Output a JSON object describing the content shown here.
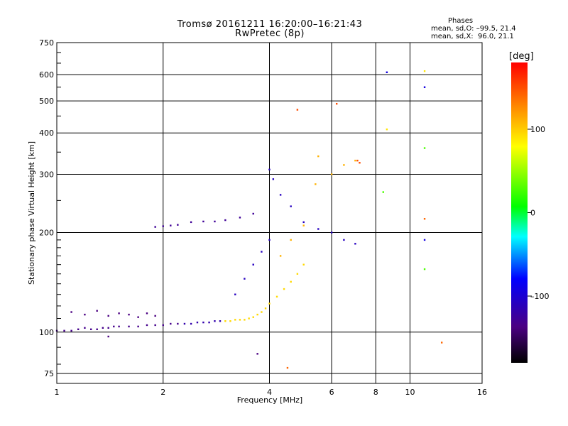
{
  "header": {
    "title": "Tromsø 20161211 16:20:00–16:21:43",
    "subtitle": "RwPretec (8p)",
    "stats_title": "Phases",
    "stats_o": "mean, sd,O: –99.5, 21.4",
    "stats_x": "mean, sd,X:  96.0, 21.1"
  },
  "colorbar": {
    "title": "[deg]",
    "min": -180,
    "max": 180,
    "ticks": [
      100,
      0,
      -100
    ],
    "tick_labels": [
      "100",
      "0",
      "–100"
    ]
  },
  "chart_data": {
    "type": "scatter",
    "xlabel": "Frequency [MHz]",
    "ylabel": "Stationary phase Virtual Height [km]",
    "xscale": "log",
    "yscale": "log",
    "xlim": [
      1,
      16
    ],
    "ylim": [
      70,
      750
    ],
    "xticks": [
      1,
      2,
      4,
      6,
      8,
      10,
      16
    ],
    "xtick_labels": [
      "1",
      "2",
      "4",
      "6",
      "8",
      "10",
      "16"
    ],
    "yticks": [
      75,
      100,
      200,
      300,
      400,
      500,
      600,
      750
    ],
    "ytick_labels": [
      "75",
      "100",
      "200",
      "300",
      "400",
      "500",
      "600",
      "750"
    ],
    "grid": true,
    "color_by": "phase [deg]",
    "traces": [
      {
        "phase": -135,
        "points": [
          [
            1.0,
            101
          ],
          [
            1.05,
            101
          ],
          [
            1.1,
            101
          ],
          [
            1.15,
            102
          ],
          [
            1.2,
            103
          ],
          [
            1.25,
            102
          ],
          [
            1.3,
            102
          ],
          [
            1.35,
            103
          ],
          [
            1.4,
            103
          ],
          [
            1.45,
            104
          ],
          [
            1.5,
            104
          ],
          [
            1.6,
            104
          ],
          [
            1.7,
            104
          ],
          [
            1.8,
            105
          ],
          [
            1.9,
            105
          ],
          [
            2.0,
            105
          ],
          [
            2.1,
            106
          ],
          [
            2.2,
            106
          ]
        ]
      },
      {
        "phase": -120,
        "points": [
          [
            2.3,
            106
          ],
          [
            2.4,
            106
          ],
          [
            2.5,
            107
          ],
          [
            2.6,
            107
          ],
          [
            2.7,
            107
          ],
          [
            2.8,
            108
          ],
          [
            2.9,
            108
          ]
        ]
      },
      {
        "phase": 95,
        "points": [
          [
            3.0,
            108
          ],
          [
            3.1,
            108
          ],
          [
            3.2,
            109
          ],
          [
            3.3,
            109
          ],
          [
            3.4,
            109
          ],
          [
            3.5,
            110
          ],
          [
            3.6,
            111
          ],
          [
            3.7,
            113
          ],
          [
            3.8,
            115
          ],
          [
            3.9,
            118
          ],
          [
            4.0,
            122
          ],
          [
            4.2,
            128
          ],
          [
            4.4,
            135
          ],
          [
            4.6,
            142
          ],
          [
            4.8,
            150
          ],
          [
            5.0,
            160
          ]
        ]
      },
      {
        "phase": -140,
        "points": [
          [
            1.1,
            115
          ],
          [
            1.2,
            113
          ],
          [
            1.3,
            116
          ],
          [
            1.4,
            112
          ],
          [
            1.5,
            114
          ],
          [
            1.6,
            113
          ],
          [
            1.7,
            111
          ],
          [
            1.8,
            114
          ],
          [
            1.9,
            112
          ]
        ]
      },
      {
        "phase": -130,
        "points": [
          [
            1.9,
            208
          ],
          [
            2.0,
            209
          ],
          [
            2.1,
            210
          ],
          [
            2.2,
            211
          ],
          [
            2.4,
            215
          ],
          [
            2.6,
            216
          ],
          [
            2.8,
            216
          ],
          [
            3.0,
            218
          ],
          [
            3.3,
            222
          ],
          [
            3.6,
            228
          ]
        ]
      },
      {
        "phase": -110,
        "points": [
          [
            3.2,
            130
          ],
          [
            3.4,
            145
          ],
          [
            3.6,
            160
          ],
          [
            3.8,
            175
          ],
          [
            4.0,
            190
          ],
          [
            4.0,
            310
          ],
          [
            4.1,
            290
          ],
          [
            4.3,
            260
          ],
          [
            4.6,
            240
          ],
          [
            5.0,
            215
          ],
          [
            5.5,
            205
          ],
          [
            6.0,
            200
          ],
          [
            6.5,
            190
          ],
          [
            7.0,
            185
          ]
        ]
      },
      {
        "phase": 110,
        "points": [
          [
            4.3,
            170
          ],
          [
            4.6,
            190
          ],
          [
            5.0,
            210
          ],
          [
            5.4,
            280
          ],
          [
            5.5,
            340
          ],
          [
            6.0,
            300
          ],
          [
            6.5,
            320
          ],
          [
            7.0,
            330
          ]
        ]
      },
      {
        "phase": 150,
        "points": [
          [
            4.8,
            470
          ],
          [
            6.2,
            490
          ],
          [
            7.1,
            330
          ],
          [
            7.2,
            325
          ]
        ]
      },
      {
        "phase": -95,
        "points": [
          [
            8.6,
            610
          ],
          [
            11.0,
            550
          ],
          [
            11.0,
            190
          ]
        ]
      },
      {
        "phase": 90,
        "points": [
          [
            11.0,
            615
          ],
          [
            8.6,
            410
          ]
        ]
      },
      {
        "phase": 30,
        "points": [
          [
            11.0,
            360
          ],
          [
            8.4,
            265
          ],
          [
            11.0,
            155
          ]
        ]
      },
      {
        "phase": 140,
        "points": [
          [
            12.3,
            93
          ],
          [
            11.0,
            220
          ],
          [
            4.5,
            78
          ]
        ]
      },
      {
        "phase": -140,
        "points": [
          [
            1.4,
            97
          ],
          [
            3.7,
            86
          ]
        ]
      }
    ]
  }
}
